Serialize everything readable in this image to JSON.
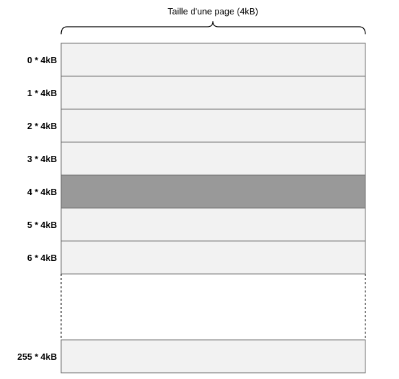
{
  "title": "Taille d'une page (4kB)",
  "pages": [
    {
      "label": "0 * 4kB",
      "highlighted": false
    },
    {
      "label": "1 * 4kB",
      "highlighted": false
    },
    {
      "label": "2 * 4kB",
      "highlighted": false
    },
    {
      "label": "3 * 4kB",
      "highlighted": false
    },
    {
      "label": "4 * 4kB",
      "highlighted": true
    },
    {
      "label": "5 * 4kB",
      "highlighted": false
    },
    {
      "label": "6 * 4kB",
      "highlighted": false
    }
  ],
  "last_page": {
    "label": "255 * 4kB",
    "highlighted": false
  },
  "colors": {
    "page_fill": "#f2f2f2",
    "highlight_fill": "#999999",
    "border": "#6f6f6f"
  }
}
